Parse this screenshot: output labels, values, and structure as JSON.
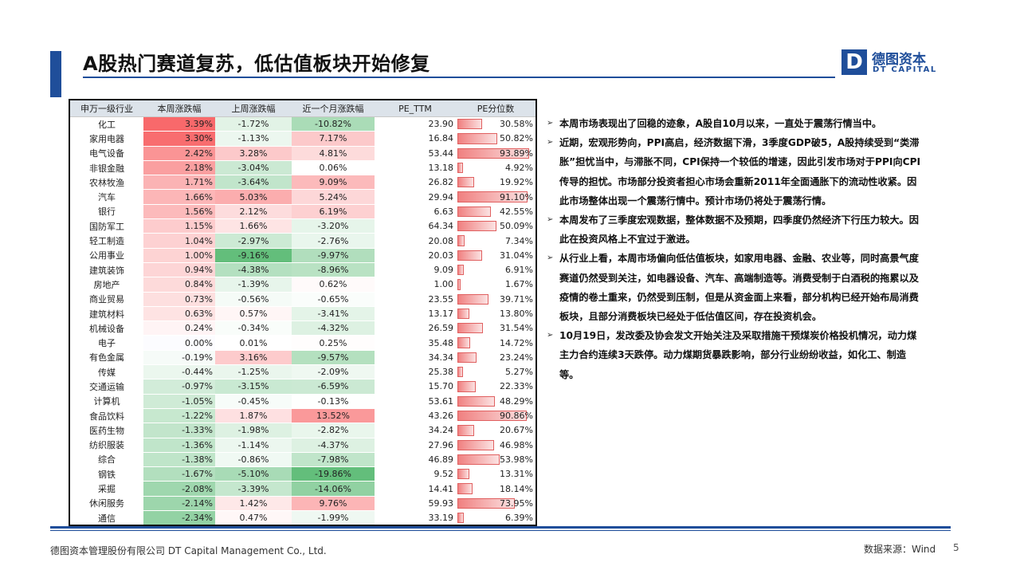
{
  "header": {
    "title": "A股热门赛道复苏，低估值板块开始修复",
    "logo_cn": "德图资本",
    "logo_en": "DT CAPITAL",
    "logo_mark": "D"
  },
  "table": {
    "columns": [
      "申万一级行业",
      "本周涨跌幅",
      "上周涨跌幅",
      "近一个月涨跌幅",
      "PE_TTM",
      "PE分位数"
    ],
    "rows": [
      {
        "name": "化工",
        "week": "3.39%",
        "last_week": "-1.72%",
        "month": "-10.82%",
        "pe": "23.90",
        "pct": "30.58%"
      },
      {
        "name": "家用电器",
        "week": "3.30%",
        "last_week": "-1.13%",
        "month": "7.17%",
        "pe": "16.84",
        "pct": "50.82%"
      },
      {
        "name": "电气设备",
        "week": "2.42%",
        "last_week": "3.28%",
        "month": "4.81%",
        "pe": "53.44",
        "pct": "93.89%"
      },
      {
        "name": "非银金融",
        "week": "2.18%",
        "last_week": "-3.04%",
        "month": "0.06%",
        "pe": "13.18",
        "pct": "4.92%"
      },
      {
        "name": "农林牧渔",
        "week": "1.71%",
        "last_week": "-3.64%",
        "month": "9.09%",
        "pe": "26.82",
        "pct": "19.92%"
      },
      {
        "name": "汽车",
        "week": "1.66%",
        "last_week": "5.03%",
        "month": "5.24%",
        "pe": "29.94",
        "pct": "91.10%"
      },
      {
        "name": "银行",
        "week": "1.56%",
        "last_week": "2.12%",
        "month": "6.19%",
        "pe": "6.63",
        "pct": "42.55%"
      },
      {
        "name": "国防军工",
        "week": "1.15%",
        "last_week": "1.66%",
        "month": "-3.20%",
        "pe": "64.34",
        "pct": "50.09%"
      },
      {
        "name": "轻工制造",
        "week": "1.04%",
        "last_week": "-2.97%",
        "month": "-2.76%",
        "pe": "20.08",
        "pct": "7.34%"
      },
      {
        "name": "公用事业",
        "week": "1.00%",
        "last_week": "-9.16%",
        "month": "-9.97%",
        "pe": "20.03",
        "pct": "31.04%"
      },
      {
        "name": "建筑装饰",
        "week": "0.94%",
        "last_week": "-4.38%",
        "month": "-8.96%",
        "pe": "9.09",
        "pct": "6.91%"
      },
      {
        "name": "房地产",
        "week": "0.84%",
        "last_week": "-1.39%",
        "month": "0.62%",
        "pe": "1.00",
        "pct": "1.67%"
      },
      {
        "name": "商业贸易",
        "week": "0.73%",
        "last_week": "-0.56%",
        "month": "-0.65%",
        "pe": "23.55",
        "pct": "39.71%"
      },
      {
        "name": "建筑材料",
        "week": "0.63%",
        "last_week": "0.57%",
        "month": "-3.41%",
        "pe": "13.17",
        "pct": "13.80%"
      },
      {
        "name": "机械设备",
        "week": "0.24%",
        "last_week": "-0.34%",
        "month": "-4.32%",
        "pe": "26.59",
        "pct": "31.54%"
      },
      {
        "name": "电子",
        "week": "0.00%",
        "last_week": "0.01%",
        "month": "0.25%",
        "pe": "35.48",
        "pct": "14.72%"
      },
      {
        "name": "有色金属",
        "week": "-0.19%",
        "last_week": "3.16%",
        "month": "-9.57%",
        "pe": "34.34",
        "pct": "23.24%"
      },
      {
        "name": "传媒",
        "week": "-0.44%",
        "last_week": "-1.25%",
        "month": "-2.09%",
        "pe": "25.38",
        "pct": "5.27%"
      },
      {
        "name": "交通运输",
        "week": "-0.97%",
        "last_week": "-3.15%",
        "month": "-6.59%",
        "pe": "15.70",
        "pct": "22.33%"
      },
      {
        "name": "计算机",
        "week": "-1.05%",
        "last_week": "-0.45%",
        "month": "-0.13%",
        "pe": "53.61",
        "pct": "48.29%"
      },
      {
        "name": "食品饮料",
        "week": "-1.22%",
        "last_week": "1.87%",
        "month": "13.52%",
        "pe": "43.26",
        "pct": "90.86%"
      },
      {
        "name": "医药生物",
        "week": "-1.33%",
        "last_week": "-1.98%",
        "month": "-2.82%",
        "pe": "34.24",
        "pct": "20.67%"
      },
      {
        "name": "纺织服装",
        "week": "-1.36%",
        "last_week": "-1.14%",
        "month": "-4.37%",
        "pe": "27.96",
        "pct": "46.98%"
      },
      {
        "name": "综合",
        "week": "-1.38%",
        "last_week": "-0.86%",
        "month": "-7.98%",
        "pe": "46.89",
        "pct": "53.98%"
      },
      {
        "name": "钢铁",
        "week": "-1.67%",
        "last_week": "-5.10%",
        "month": "-19.86%",
        "pe": "9.52",
        "pct": "13.31%"
      },
      {
        "name": "采掘",
        "week": "-2.08%",
        "last_week": "-3.39%",
        "month": "-14.06%",
        "pe": "14.41",
        "pct": "18.14%"
      },
      {
        "name": "休闲服务",
        "week": "-2.14%",
        "last_week": "1.42%",
        "month": "9.76%",
        "pe": "59.93",
        "pct": "73.95%"
      },
      {
        "name": "通信",
        "week": "-2.34%",
        "last_week": "0.47%",
        "month": "-1.99%",
        "pe": "33.19",
        "pct": "6.39%"
      }
    ]
  },
  "bullets": [
    "本周市场表现出了回稳的迹象，A股自10月以来，一直处于震荡行情当中。",
    "近期，宏观形势向，PPI高启，经济数据下滑，3季度GDP破5，A股持续受到“类滞胀”担忧当中，与滞胀不同，CPI保持一个较低的增速，因此引发市场对于PPI向CPI传导的担忧。市场部分投资者担心市场会重新2011年全面通胀下的流动性收紧。因此市场整体出现一个震荡行情中。预计市场仍将处于震荡行情。",
    "本周发布了三季度宏观数据，整体数据不及预期，四季度仍然经济下行压力较大。因此在投资风格上不宜过于激进。",
    "从行业上看，本周市场偏向低估值板块，如家用电器、金融、农业等，同时高景气度赛道仍然受到关注，如电器设备、汽车、高端制造等。消费受制于白酒税的拖累以及疫情的卷土重来，仍然受到压制，但是从资金面上来看，部分机构已经开始布局消费板块，且部分消费板块已经处于低估值区间，存在投资机会。",
    "10月19日，发改委及协会发文开始关注及采取措施干预煤炭价格投机情况，动力煤主力合约连续3天跌停。动力煤期货暴跌影响，部分行业纷纷收益，如化工、制造等。"
  ],
  "footer": {
    "company": "德图资本管理股份有限公司  DT Capital Management  Co., Ltd.",
    "source": "数据来源：Wind",
    "page": "5"
  },
  "colors": {
    "brand_blue": "#1f4e9a",
    "positive": "#f8696b",
    "negative": "#63be7b",
    "header_bg": "#dce3ea"
  }
}
